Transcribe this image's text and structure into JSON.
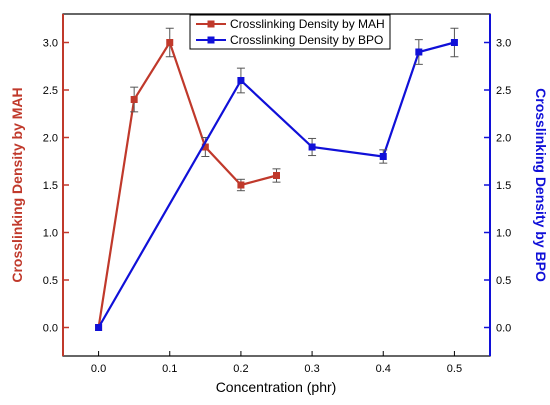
{
  "chart_data": {
    "type": "line",
    "xlabel": "Concentration (phr)",
    "ylabel_left": "Crosslinking Density by MAH",
    "ylabel_right": "Crosslinking Density by BPO",
    "xlim": [
      -0.05,
      0.55
    ],
    "ylim_left": [
      -0.3,
      3.3
    ],
    "ylim_right": [
      -0.3,
      3.3
    ],
    "x_ticks": [
      "0.0",
      "0.1",
      "0.2",
      "0.3",
      "0.4",
      "0.5"
    ],
    "y_ticks": [
      "0.0",
      "0.5",
      "1.0",
      "1.5",
      "2.0",
      "2.5",
      "3.0"
    ],
    "legend_position": "top",
    "colors": {
      "mah": "#c0392b",
      "bpo": "#1010d8",
      "axis_left": "#c0392b",
      "axis_right": "#1010d8"
    },
    "series": [
      {
        "name": "Crosslinking Density by MAH",
        "axis": "left",
        "x": [
          0.0,
          0.05,
          0.1,
          0.15,
          0.2,
          0.25
        ],
        "y": [
          0.0,
          2.4,
          3.0,
          1.9,
          1.5,
          1.6
        ],
        "error": [
          0.0,
          0.13,
          0.15,
          0.1,
          0.06,
          0.07
        ]
      },
      {
        "name": "Crosslinking Density by BPO",
        "axis": "right",
        "x": [
          0.0,
          0.2,
          0.3,
          0.4,
          0.45,
          0.5
        ],
        "y": [
          0.0,
          2.6,
          1.9,
          1.8,
          2.9,
          3.0
        ],
        "error": [
          0.0,
          0.13,
          0.09,
          0.07,
          0.13,
          0.15
        ]
      }
    ]
  }
}
